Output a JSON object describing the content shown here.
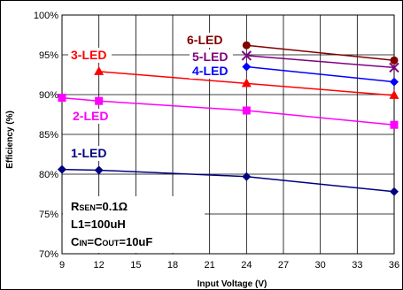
{
  "chart_data": {
    "type": "line",
    "xlabel": "Input Voltage (V)",
    "ylabel": "Efficiency (%)",
    "xlim": [
      9,
      36
    ],
    "ylim": [
      70,
      100
    ],
    "x_ticks": [
      "9",
      "12",
      "15",
      "18",
      "21",
      "24",
      "27",
      "30",
      "33",
      "36"
    ],
    "y_ticks": [
      "70%",
      "75%",
      "80%",
      "85%",
      "90%",
      "95%",
      "100%"
    ],
    "grid": true,
    "series": [
      {
        "name": "1-LED",
        "color": "#000080",
        "marker": "diamond",
        "x": [
          9,
          12,
          24,
          36
        ],
        "y": [
          80.6,
          80.5,
          79.7,
          77.8
        ]
      },
      {
        "name": "2-LED",
        "color": "#ff00ff",
        "marker": "square",
        "x": [
          9,
          12,
          24,
          36
        ],
        "y": [
          89.6,
          89.2,
          88.0,
          86.2
        ]
      },
      {
        "name": "3-LED",
        "color": "#ff0000",
        "marker": "triangle",
        "x": [
          12,
          24,
          36
        ],
        "y": [
          92.9,
          91.4,
          89.9
        ]
      },
      {
        "name": "4-LED",
        "color": "#0000ff",
        "marker": "diamond",
        "x": [
          24,
          36
        ],
        "y": [
          93.5,
          91.6
        ]
      },
      {
        "name": "5-LED",
        "color": "#800080",
        "marker": "x",
        "x": [
          24,
          36
        ],
        "y": [
          94.9,
          93.4
        ]
      },
      {
        "name": "6-LED",
        "color": "#800000",
        "marker": "circle",
        "x": [
          24,
          36
        ],
        "y": [
          96.2,
          94.3
        ]
      }
    ],
    "annotations": {
      "rsen_main": "R",
      "rsen_sub": "SEN",
      "rsen_value": "=0.1Ω",
      "l1": "L1=100uH",
      "cin_main": "C",
      "cin_sub": "IN",
      "cout_mid": "=C",
      "cout_sub": "OUT",
      "cout_value": "=10uF"
    }
  }
}
